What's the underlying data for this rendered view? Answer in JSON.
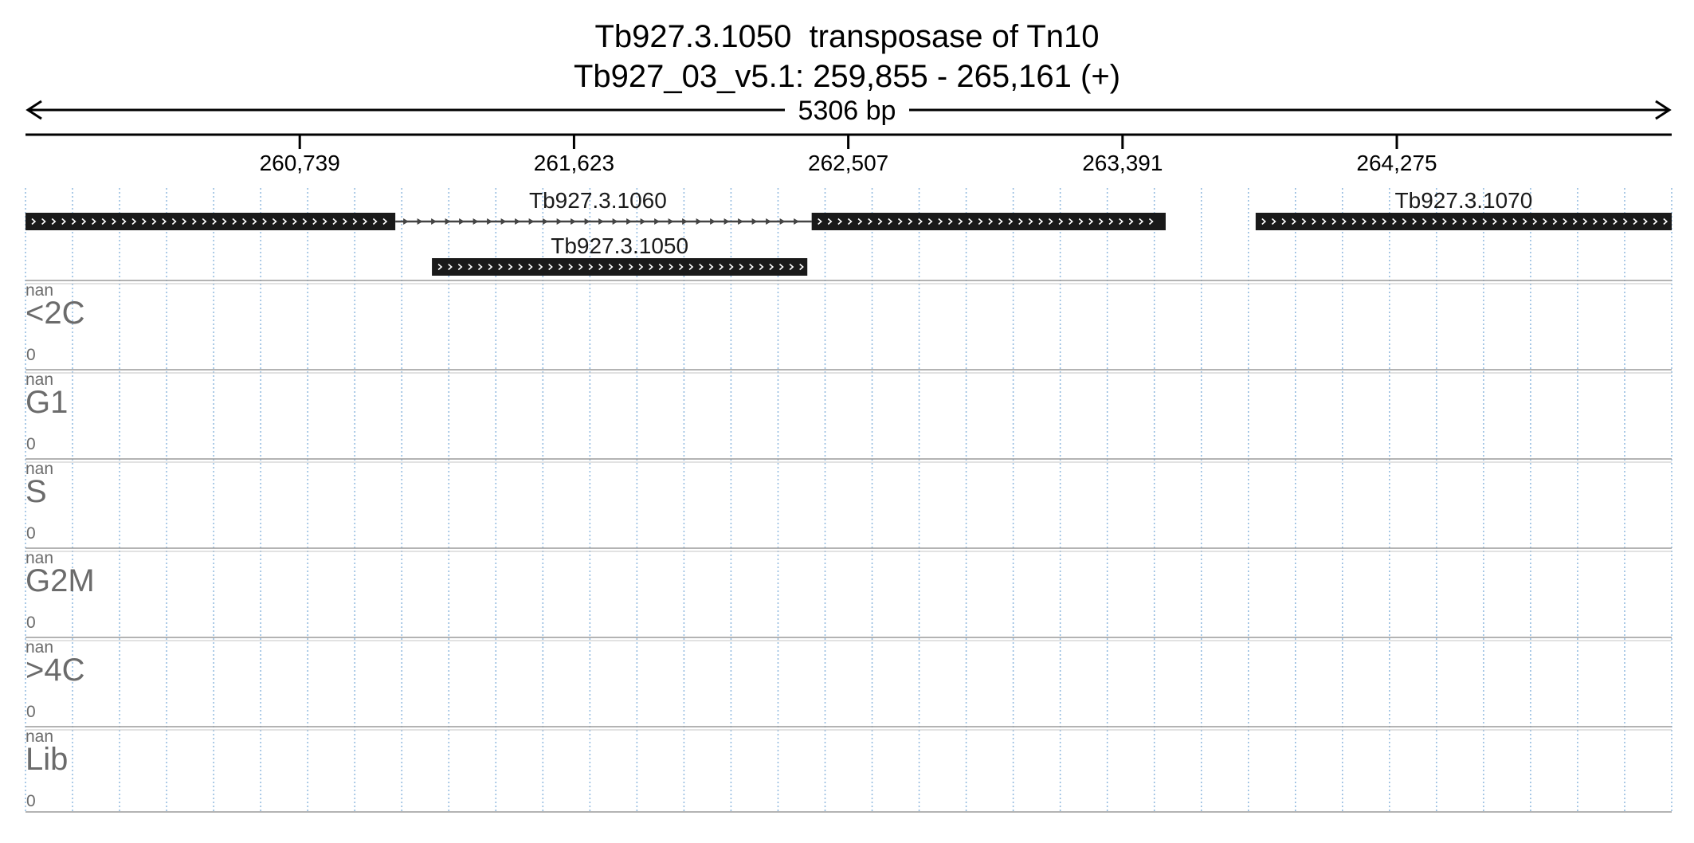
{
  "header": {
    "gene_line": "Tb927.3.1050  transposase of Tn10",
    "location_line": "Tb927_03_v5.1: 259,855 - 265,161 (+)"
  },
  "region": {
    "chromosome": "Tb927_03_v5.1",
    "start": 259855,
    "end": 265161,
    "strand": "+",
    "span_label": "5306 bp"
  },
  "axis": {
    "ticks": [
      {
        "value": 260739,
        "label": "260,739"
      },
      {
        "value": 261623,
        "label": "261,623"
      },
      {
        "value": 262507,
        "label": "262,507"
      },
      {
        "value": 263391,
        "label": "263,391"
      },
      {
        "value": 264275,
        "label": "264,275"
      }
    ]
  },
  "genes": [
    {
      "id": "Tb927.3.1060",
      "label": "Tb927.3.1060",
      "strand": "+",
      "row": 0,
      "show_label": true,
      "blocks": [
        [
          259855,
          261047
        ],
        [
          262389,
          263530
        ]
      ]
    },
    {
      "id": "Tb927.3.1050",
      "label": "Tb927.3.1050",
      "strand": "+",
      "row": 1,
      "show_label": true,
      "blocks": [
        [
          261165,
          262375
        ]
      ]
    },
    {
      "id": "Tb927.3.1070",
      "label": "Tb927.3.1070",
      "strand": "+",
      "row": 0,
      "show_label": true,
      "blocks": [
        [
          263820,
          265161
        ]
      ]
    }
  ],
  "tracks": [
    {
      "name": "<2C",
      "max_label": "nan",
      "min_label": "0"
    },
    {
      "name": "G1",
      "max_label": "nan",
      "min_label": "0"
    },
    {
      "name": "S",
      "max_label": "nan",
      "min_label": "0"
    },
    {
      "name": "G2M",
      "max_label": "nan",
      "min_label": "0"
    },
    {
      "name": ">4C",
      "max_label": "nan",
      "min_label": "0"
    },
    {
      "name": "Lib",
      "max_label": "nan",
      "min_label": "0"
    }
  ],
  "colors": {
    "gene_block": "#1a1a1a",
    "strand_arrow": "#ffffff",
    "intron_line": "#444444",
    "grid_line": "#8fb8de",
    "track_separator": "#9a9a9a",
    "track_label": "#6b6b6b"
  }
}
